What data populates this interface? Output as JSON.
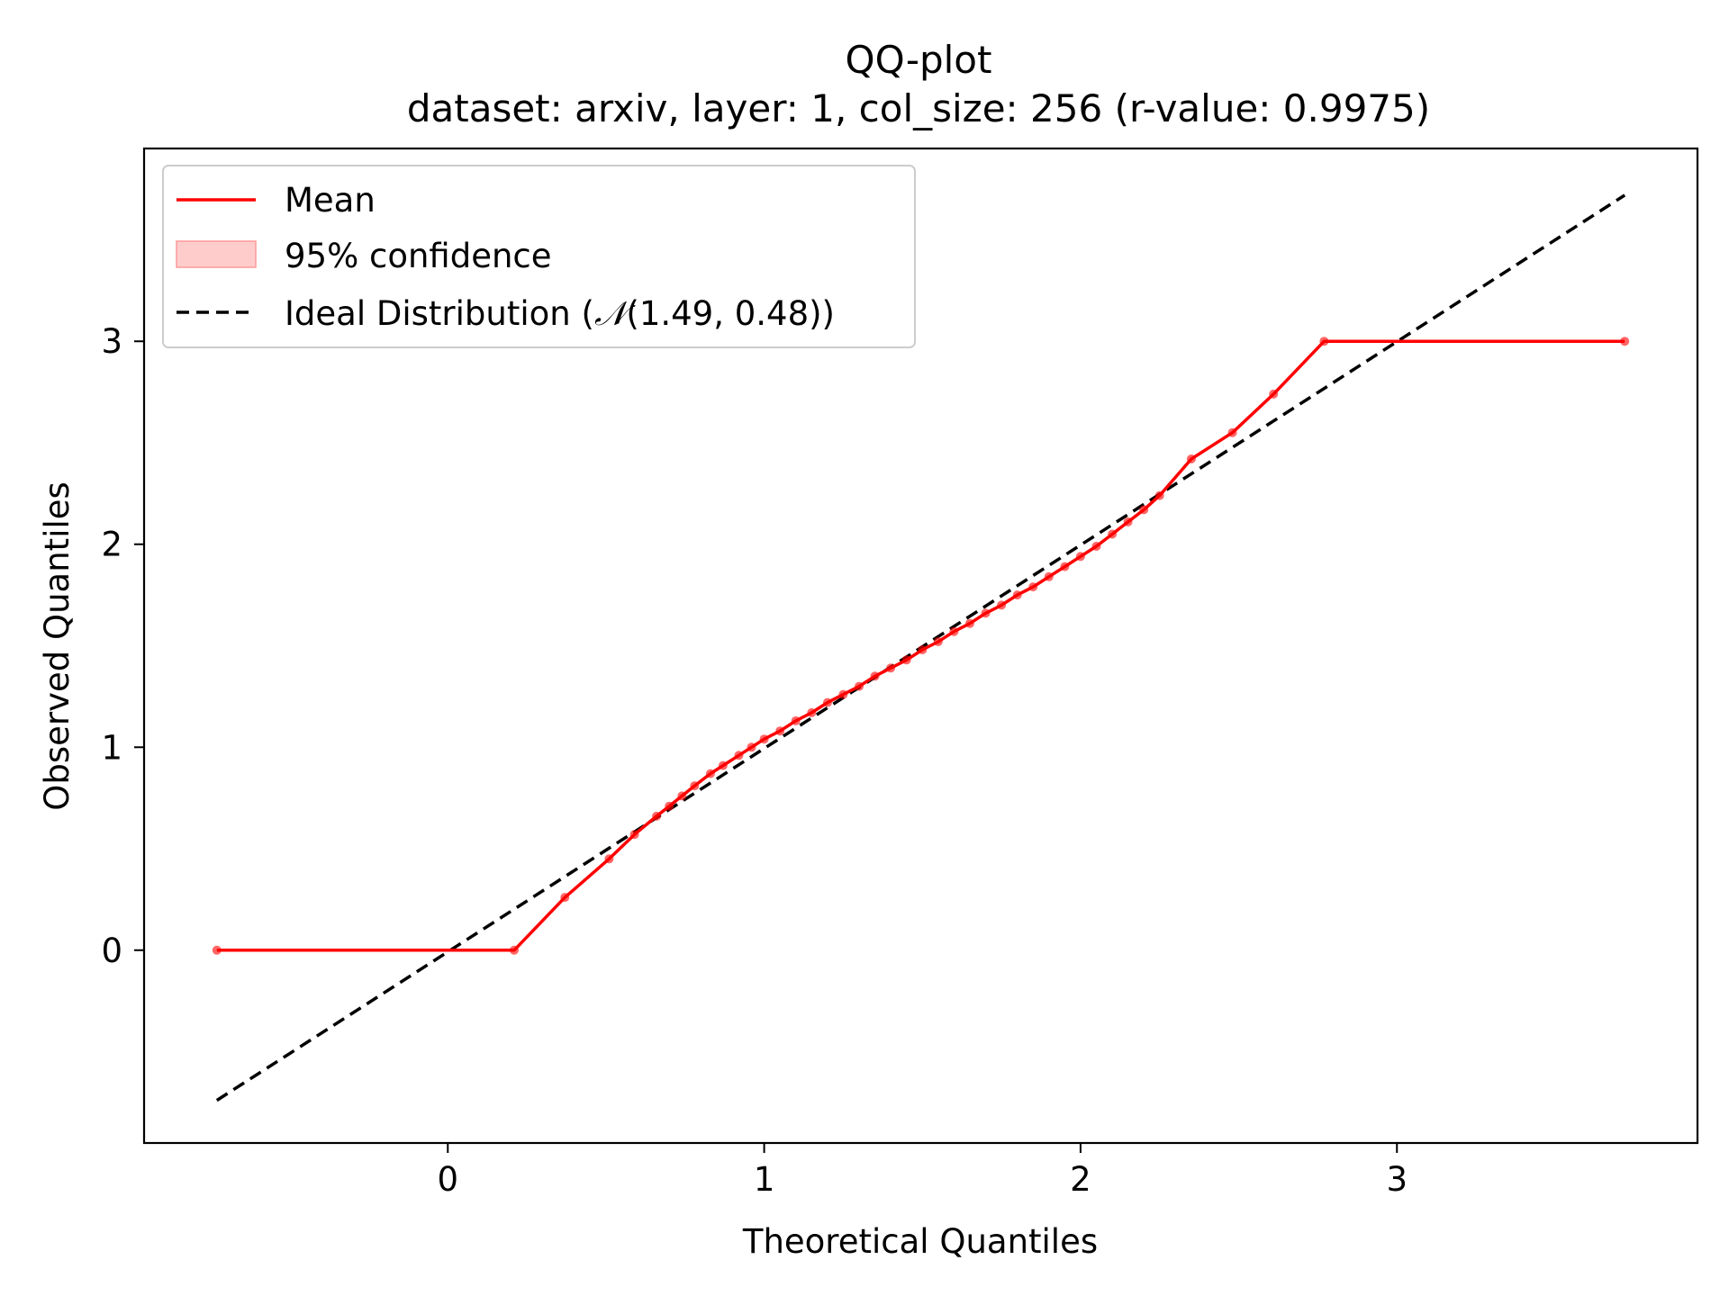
{
  "chart_data": {
    "type": "line",
    "title": "QQ-plot",
    "subtitle": "dataset: arxiv, layer: 1, col_size: 256 (r-value: 0.9975)",
    "xlabel": "Theoretical Quantiles",
    "ylabel": "Observed Quantiles",
    "xlim": [
      -0.96,
      3.95
    ],
    "ylim": [
      -0.95,
      3.95
    ],
    "xticks": [
      0,
      1,
      2,
      3
    ],
    "yticks": [
      0,
      1,
      2,
      3
    ],
    "grid": false,
    "legend_position": "upper-left",
    "legend": {
      "mean_label": "Mean",
      "confidence_label": "95% confidence",
      "ideal_label_prefix": "Ideal Distribution (",
      "ideal_label_symbol": "𝒩",
      "ideal_label_params": "(1.49, 0.48))"
    },
    "series": [
      {
        "name": "Mean",
        "color": "#ff0000",
        "x": [
          -0.73,
          0.21,
          0.37,
          0.51,
          0.59,
          0.66,
          0.7,
          0.74,
          0.78,
          0.83,
          0.87,
          0.92,
          0.96,
          1.0,
          1.05,
          1.1,
          1.15,
          1.2,
          1.25,
          1.3,
          1.35,
          1.4,
          1.45,
          1.5,
          1.55,
          1.6,
          1.65,
          1.7,
          1.75,
          1.8,
          1.85,
          1.9,
          1.95,
          2.0,
          2.05,
          2.1,
          2.15,
          2.2,
          2.25,
          2.35,
          2.48,
          2.61,
          2.77,
          3.72
        ],
        "y": [
          0.0,
          0.0,
          0.26,
          0.45,
          0.57,
          0.66,
          0.71,
          0.76,
          0.81,
          0.87,
          0.91,
          0.96,
          1.0,
          1.04,
          1.08,
          1.13,
          1.17,
          1.22,
          1.26,
          1.3,
          1.35,
          1.39,
          1.43,
          1.48,
          1.52,
          1.57,
          1.61,
          1.66,
          1.7,
          1.75,
          1.79,
          1.84,
          1.89,
          1.94,
          1.99,
          2.05,
          2.11,
          2.17,
          2.24,
          2.42,
          2.55,
          2.74,
          3.0,
          3.0
        ]
      },
      {
        "name": "Ideal Distribution (𝒩(1.49, 0.48))",
        "color": "#000000",
        "style": "dashed",
        "x": [
          -0.73,
          3.72
        ],
        "y": [
          -0.74,
          3.72
        ]
      }
    ],
    "colors": {
      "mean": "#ff0000",
      "confidence_fill": "#ffcccc",
      "confidence_edge": "#ff9999",
      "ideal": "#000000"
    }
  }
}
